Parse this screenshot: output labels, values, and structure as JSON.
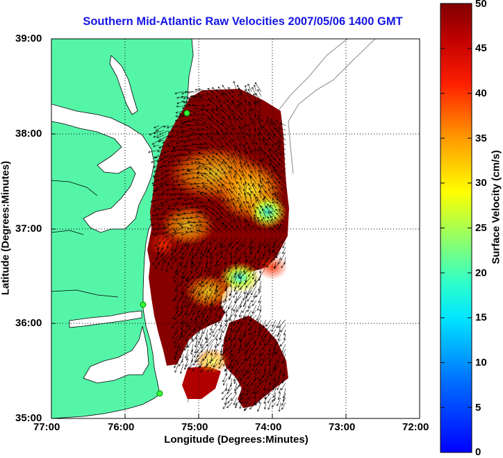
{
  "title": "Southern Mid-Atlantic Raw Velocities 2007/05/06 1400 GMT",
  "axes": {
    "xlabel": "Longitude (Degrees:Minutes)",
    "ylabel": "Latitude (Degrees:Minutes)",
    "xticks": [
      "77:00",
      "76:00",
      "75:00",
      "74:00",
      "73:00",
      "72:00"
    ],
    "yticks": [
      "39:00",
      "38:00",
      "37:00",
      "36:00",
      "35:00"
    ]
  },
  "colorbar": {
    "label": "Surface Velocity (cm/s)",
    "ticks": [
      "50",
      "45",
      "40",
      "35",
      "30",
      "25",
      "20",
      "15",
      "10",
      "5",
      "0"
    ],
    "range": [
      0,
      50
    ]
  },
  "map": {
    "lon_range": [
      -77,
      -72
    ],
    "lat_range": [
      35,
      39
    ],
    "grid": "dotted",
    "land_color": "#55f5a8",
    "water_color": "#ffffff",
    "colormap": "jet",
    "stations": [
      "green-dot",
      "green-dot",
      "green-dot"
    ]
  }
}
